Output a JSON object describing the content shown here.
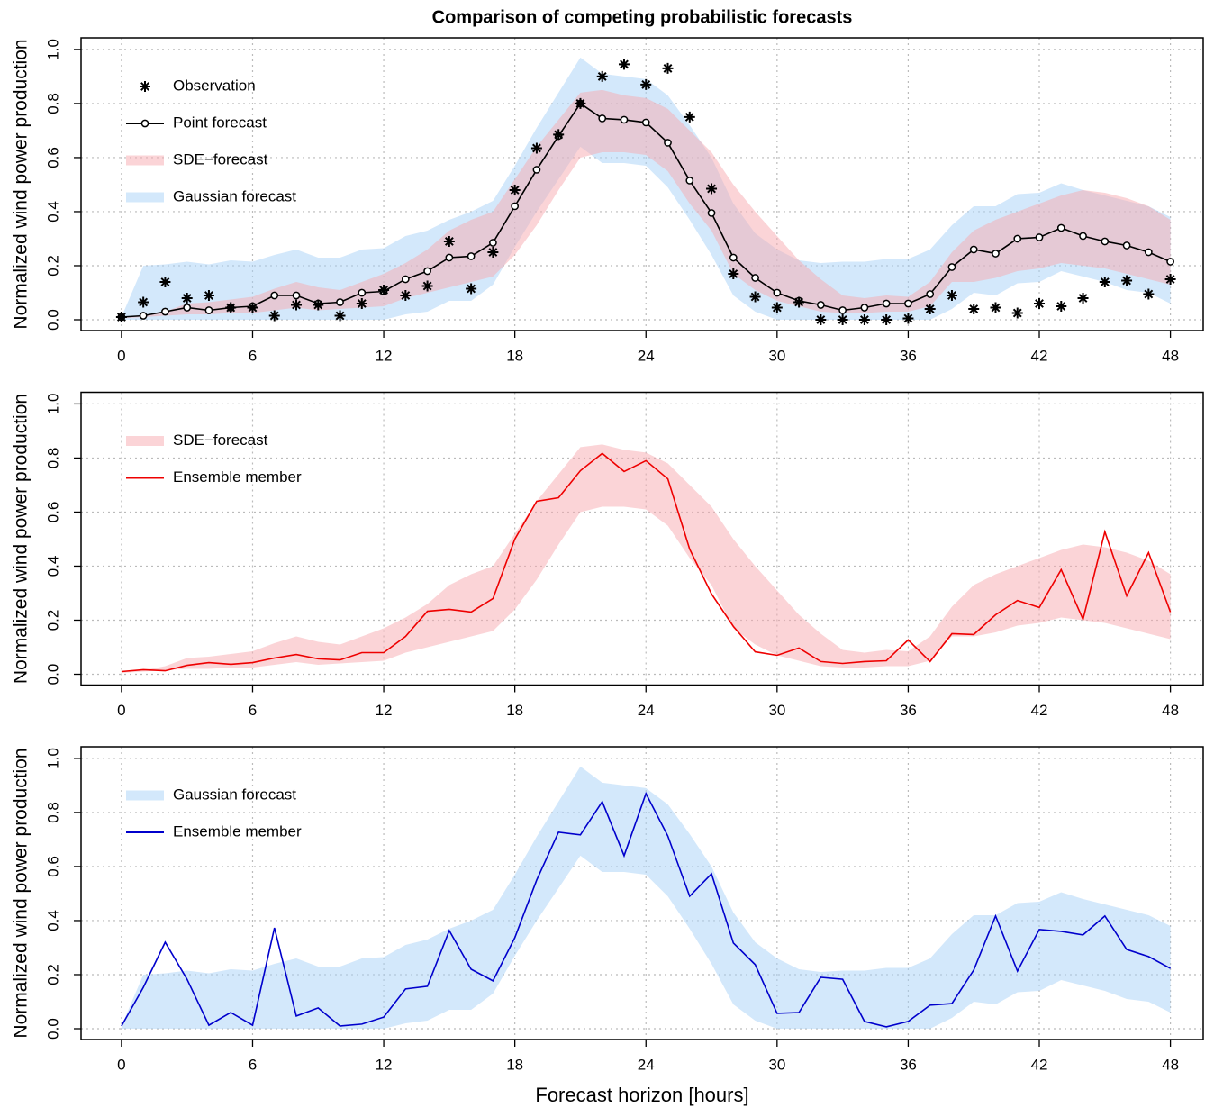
{
  "chart_data": [
    {
      "type": "line",
      "title": "Comparison of competing probabilistic forecasts",
      "ylabel": "Normalized wind power production",
      "x": [
        0,
        1,
        2,
        3,
        4,
        5,
        6,
        7,
        8,
        9,
        10,
        11,
        12,
        13,
        14,
        15,
        16,
        17,
        18,
        19,
        20,
        21,
        22,
        23,
        24,
        25,
        26,
        27,
        28,
        29,
        30,
        31,
        32,
        33,
        34,
        35,
        36,
        37,
        38,
        39,
        40,
        41,
        42,
        43,
        44,
        45,
        46,
        47,
        48
      ],
      "xlim": [
        -1.85,
        49.5
      ],
      "xticks": [
        0,
        6,
        12,
        18,
        24,
        30,
        36,
        42,
        48
      ],
      "ylim": [
        -0.04,
        1.043
      ],
      "yticks": [
        {
          "value": 0,
          "label": "0.0"
        },
        0.2,
        0.4,
        0.6,
        0.8,
        {
          "value": 1,
          "label": "1.0"
        }
      ],
      "grid": true,
      "legend": "topleft",
      "series": [
        {
          "name": "Observation",
          "style": "points",
          "marker": "asterisk",
          "color": "#000000",
          "values": [
            0.01,
            0.065,
            0.14,
            0.08,
            0.09,
            0.045,
            0.045,
            0.015,
            0.055,
            0.055,
            0.015,
            0.06,
            0.11,
            0.09,
            0.125,
            0.29,
            0.115,
            0.25,
            0.48,
            0.635,
            0.685,
            0.8,
            0.9,
            0.945,
            0.87,
            0.93,
            0.75,
            0.485,
            0.17,
            0.085,
            0.045,
            0.065,
            0,
            0,
            0,
            0,
            0.005,
            0.04,
            0.09,
            0.04,
            0.045,
            0.025,
            0.06,
            0.05,
            0.08,
            0.14,
            0.145,
            0.095,
            0.15
          ]
        },
        {
          "name": "Point forecast",
          "style": "line",
          "marker": "circle",
          "color": "#000000",
          "values": [
            0.01,
            0.015,
            0.03,
            0.045,
            0.035,
            0.045,
            0.05,
            0.09,
            0.09,
            0.06,
            0.065,
            0.1,
            0.105,
            0.15,
            0.18,
            0.23,
            0.235,
            0.285,
            0.42,
            0.555,
            0.68,
            0.8,
            0.745,
            0.74,
            0.73,
            0.655,
            0.515,
            0.395,
            0.23,
            0.155,
            0.1,
            0.07,
            0.055,
            0.035,
            0.045,
            0.06,
            0.06,
            0.095,
            0.195,
            0.26,
            0.245,
            0.3,
            0.305,
            0.34,
            0.31,
            0.29,
            0.275,
            0.25,
            0.215
          ]
        },
        {
          "name": "SDE−forecast",
          "style": "band",
          "color": "#f7aab0",
          "upper": [
            0.01,
            0.015,
            0.03,
            0.06,
            0.065,
            0.075,
            0.085,
            0.115,
            0.14,
            0.12,
            0.11,
            0.14,
            0.17,
            0.21,
            0.26,
            0.33,
            0.37,
            0.4,
            0.52,
            0.64,
            0.74,
            0.84,
            0.85,
            0.83,
            0.82,
            0.78,
            0.7,
            0.62,
            0.5,
            0.4,
            0.31,
            0.22,
            0.15,
            0.09,
            0.08,
            0.09,
            0.085,
            0.14,
            0.25,
            0.33,
            0.37,
            0.4,
            0.43,
            0.46,
            0.48,
            0.47,
            0.45,
            0.42,
            0.37
          ],
          "lower": [
            0.005,
            0.01,
            0.015,
            0.02,
            0.02,
            0.025,
            0.025,
            0.035,
            0.045,
            0.035,
            0.04,
            0.045,
            0.05,
            0.08,
            0.1,
            0.12,
            0.14,
            0.16,
            0.24,
            0.35,
            0.48,
            0.6,
            0.62,
            0.62,
            0.61,
            0.55,
            0.43,
            0.33,
            0.17,
            0.11,
            0.07,
            0.05,
            0.03,
            0.025,
            0.025,
            0.03,
            0.03,
            0.05,
            0.14,
            0.14,
            0.155,
            0.18,
            0.19,
            0.21,
            0.2,
            0.19,
            0.17,
            0.15,
            0.13
          ]
        },
        {
          "name": "Gaussian forecast",
          "style": "band",
          "color": "#a8d2f7",
          "upper": [
            0.01,
            0.2,
            0.205,
            0.215,
            0.205,
            0.22,
            0.215,
            0.24,
            0.26,
            0.23,
            0.23,
            0.26,
            0.265,
            0.31,
            0.33,
            0.37,
            0.4,
            0.44,
            0.57,
            0.71,
            0.84,
            0.97,
            0.91,
            0.9,
            0.89,
            0.83,
            0.72,
            0.6,
            0.43,
            0.32,
            0.26,
            0.22,
            0.21,
            0.215,
            0.215,
            0.225,
            0.225,
            0.26,
            0.35,
            0.42,
            0.42,
            0.465,
            0.47,
            0.505,
            0.48,
            0.46,
            0.44,
            0.42,
            0.38
          ],
          "lower": [
            0,
            0,
            0,
            0,
            0,
            0,
            0,
            0,
            0,
            0,
            0,
            0,
            0,
            0.02,
            0.03,
            0.07,
            0.07,
            0.13,
            0.27,
            0.4,
            0.52,
            0.64,
            0.58,
            0.58,
            0.57,
            0.49,
            0.37,
            0.24,
            0.09,
            0.03,
            0,
            0,
            0,
            0,
            0,
            0,
            0,
            0,
            0.04,
            0.1,
            0.09,
            0.135,
            0.14,
            0.18,
            0.16,
            0.14,
            0.11,
            0.1,
            0.06
          ]
        }
      ]
    },
    {
      "type": "line",
      "ylabel": "Normalized wind power production",
      "x": [
        0,
        1,
        2,
        3,
        4,
        5,
        6,
        7,
        8,
        9,
        10,
        11,
        12,
        13,
        14,
        15,
        16,
        17,
        18,
        19,
        20,
        21,
        22,
        23,
        24,
        25,
        26,
        27,
        28,
        29,
        30,
        31,
        32,
        33,
        34,
        35,
        36,
        37,
        38,
        39,
        40,
        41,
        42,
        43,
        44,
        45,
        46,
        47,
        48
      ],
      "xlim": [
        -1.85,
        49.5
      ],
      "xticks": [
        0,
        6,
        12,
        18,
        24,
        30,
        36,
        42,
        48
      ],
      "ylim": [
        -0.04,
        1.043
      ],
      "yticks": [
        {
          "value": 0,
          "label": "0.0"
        },
        0.2,
        0.4,
        0.6,
        0.8,
        {
          "value": 1,
          "label": "1.0"
        }
      ],
      "grid": true,
      "legend": "topleft",
      "series": [
        {
          "name": "SDE−forecast",
          "style": "band",
          "color": "#f7aab0",
          "upper": [
            0.01,
            0.015,
            0.03,
            0.06,
            0.065,
            0.075,
            0.085,
            0.115,
            0.14,
            0.12,
            0.11,
            0.14,
            0.17,
            0.21,
            0.26,
            0.33,
            0.37,
            0.4,
            0.52,
            0.64,
            0.74,
            0.84,
            0.85,
            0.83,
            0.82,
            0.78,
            0.7,
            0.62,
            0.5,
            0.4,
            0.31,
            0.22,
            0.15,
            0.09,
            0.08,
            0.09,
            0.085,
            0.14,
            0.25,
            0.33,
            0.37,
            0.4,
            0.43,
            0.46,
            0.48,
            0.47,
            0.45,
            0.42,
            0.37
          ],
          "lower": [
            0.005,
            0.01,
            0.015,
            0.02,
            0.02,
            0.025,
            0.025,
            0.035,
            0.045,
            0.035,
            0.04,
            0.045,
            0.05,
            0.08,
            0.1,
            0.12,
            0.14,
            0.16,
            0.24,
            0.35,
            0.48,
            0.6,
            0.62,
            0.62,
            0.61,
            0.55,
            0.43,
            0.33,
            0.17,
            0.11,
            0.07,
            0.05,
            0.03,
            0.025,
            0.025,
            0.03,
            0.03,
            0.05,
            0.14,
            0.14,
            0.155,
            0.18,
            0.19,
            0.21,
            0.2,
            0.19,
            0.17,
            0.15,
            0.13
          ]
        },
        {
          "name": "Ensemble member",
          "style": "line",
          "color": "#ee0000",
          "values": [
            0.01,
            0.017,
            0.013,
            0.033,
            0.043,
            0.037,
            0.043,
            0.06,
            0.073,
            0.057,
            0.053,
            0.08,
            0.08,
            0.14,
            0.233,
            0.24,
            0.23,
            0.28,
            0.5,
            0.64,
            0.653,
            0.753,
            0.817,
            0.75,
            0.79,
            0.723,
            0.463,
            0.297,
            0.177,
            0.083,
            0.07,
            0.097,
            0.047,
            0.04,
            0.047,
            0.05,
            0.127,
            0.047,
            0.15,
            0.147,
            0.22,
            0.273,
            0.247,
            0.387,
            0.203,
            0.527,
            0.29,
            0.45,
            0.23
          ]
        }
      ]
    },
    {
      "type": "line",
      "ylabel": "Normalized wind power production",
      "xlabel": "Forecast horizon [hours]",
      "x": [
        0,
        1,
        2,
        3,
        4,
        5,
        6,
        7,
        8,
        9,
        10,
        11,
        12,
        13,
        14,
        15,
        16,
        17,
        18,
        19,
        20,
        21,
        22,
        23,
        24,
        25,
        26,
        27,
        28,
        29,
        30,
        31,
        32,
        33,
        34,
        35,
        36,
        37,
        38,
        39,
        40,
        41,
        42,
        43,
        44,
        45,
        46,
        47,
        48
      ],
      "xlim": [
        -1.85,
        49.5
      ],
      "xticks": [
        0,
        6,
        12,
        18,
        24,
        30,
        36,
        42,
        48
      ],
      "ylim": [
        -0.04,
        1.043
      ],
      "yticks": [
        {
          "value": 0,
          "label": "0.0"
        },
        0.2,
        0.4,
        0.6,
        0.8,
        {
          "value": 1,
          "label": "1.0"
        }
      ],
      "grid": true,
      "legend": "topleft",
      "series": [
        {
          "name": "Gaussian forecast",
          "style": "band",
          "color": "#a8d2f7",
          "upper": [
            0.01,
            0.2,
            0.205,
            0.215,
            0.205,
            0.22,
            0.215,
            0.24,
            0.26,
            0.23,
            0.23,
            0.26,
            0.265,
            0.31,
            0.33,
            0.37,
            0.4,
            0.44,
            0.57,
            0.71,
            0.84,
            0.97,
            0.91,
            0.9,
            0.89,
            0.83,
            0.72,
            0.6,
            0.43,
            0.32,
            0.26,
            0.22,
            0.21,
            0.215,
            0.215,
            0.225,
            0.225,
            0.26,
            0.35,
            0.42,
            0.42,
            0.465,
            0.47,
            0.505,
            0.48,
            0.46,
            0.44,
            0.42,
            0.38
          ],
          "lower": [
            0,
            0,
            0,
            0,
            0,
            0,
            0,
            0,
            0,
            0,
            0,
            0,
            0,
            0.02,
            0.03,
            0.07,
            0.07,
            0.13,
            0.27,
            0.4,
            0.52,
            0.64,
            0.58,
            0.58,
            0.57,
            0.49,
            0.37,
            0.24,
            0.09,
            0.03,
            0,
            0,
            0,
            0,
            0,
            0,
            0,
            0,
            0.04,
            0.1,
            0.09,
            0.135,
            0.14,
            0.18,
            0.16,
            0.14,
            0.11,
            0.1,
            0.06
          ]
        },
        {
          "name": "Ensemble member",
          "style": "line",
          "color": "#0000cc",
          "values": [
            0.01,
            0.153,
            0.32,
            0.183,
            0.013,
            0.06,
            0.013,
            0.373,
            0.047,
            0.077,
            0.01,
            0.017,
            0.043,
            0.147,
            0.157,
            0.363,
            0.22,
            0.177,
            0.337,
            0.55,
            0.727,
            0.717,
            0.84,
            0.64,
            0.87,
            0.713,
            0.49,
            0.573,
            0.317,
            0.237,
            0.057,
            0.06,
            0.19,
            0.183,
            0.027,
            0.007,
            0.027,
            0.087,
            0.093,
            0.217,
            0.417,
            0.213,
            0.367,
            0.36,
            0.347,
            0.417,
            0.293,
            0.267,
            0.223
          ]
        }
      ]
    }
  ]
}
